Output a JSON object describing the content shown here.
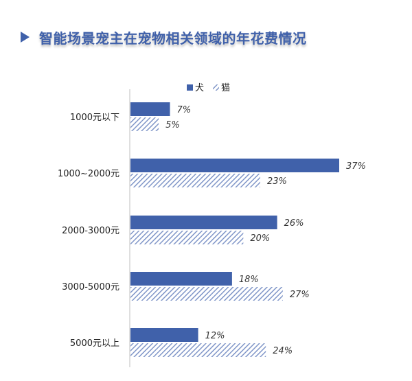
{
  "title": "智能场景宠主在宠物相关领域的年花费情况",
  "colors": {
    "title": "#4061aa",
    "dog_bar": "#4061aa",
    "cat_hatch": "#8096c8",
    "axis": "#bfbfbf",
    "label": "#222222"
  },
  "chart_data": {
    "type": "bar",
    "orientation": "horizontal",
    "title": "",
    "xlabel": "",
    "ylabel": "",
    "categories": [
      "1000元以下",
      "1000~2000元",
      "2000-3000元",
      "3000-5000元",
      "5000元以上"
    ],
    "series": [
      {
        "name": "犬",
        "values": [
          7,
          37,
          26,
          18,
          12
        ],
        "labels": [
          "7%",
          "37%",
          "26%",
          "18%",
          "12%"
        ],
        "fill": "solid"
      },
      {
        "name": "猫",
        "values": [
          5,
          23,
          20,
          27,
          24
        ],
        "labels": [
          "5%",
          "23%",
          "20%",
          "27%",
          "24%"
        ],
        "fill": "hatched"
      }
    ],
    "value_unit": "%",
    "xlim": [
      0,
      37
    ],
    "grid": false,
    "legend_position": "top"
  }
}
